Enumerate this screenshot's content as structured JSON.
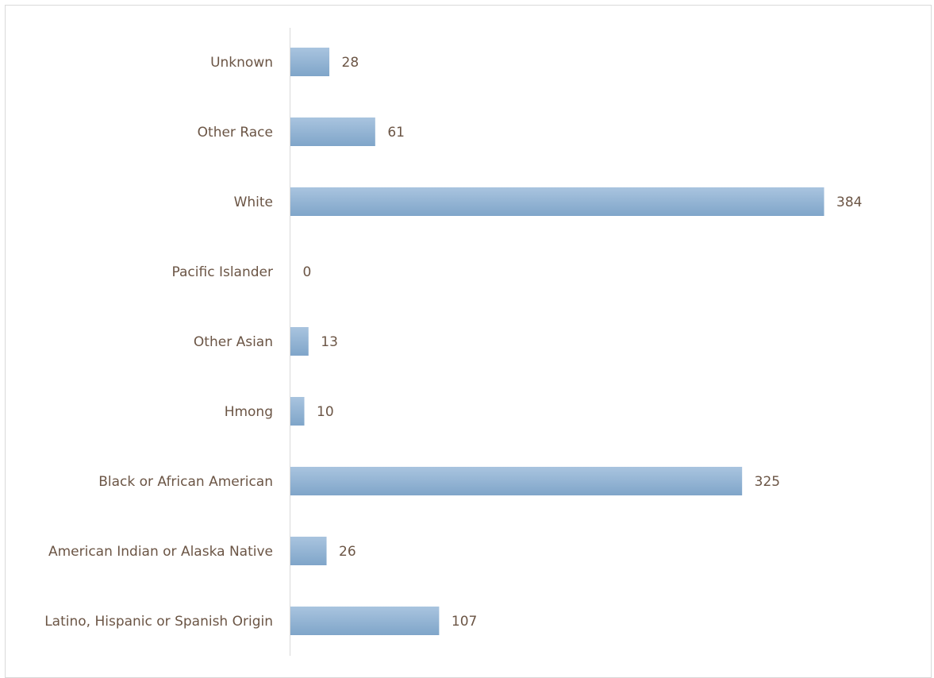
{
  "chart_data": {
    "type": "bar",
    "orientation": "horizontal",
    "categories": [
      "Unknown",
      "Other Race",
      "White",
      "Pacific Islander",
      "Other Asian",
      "Hmong",
      "Black or African American",
      "American Indian or Alaska Native",
      "Latino, Hispanic or Spanish Origin"
    ],
    "values": [
      28,
      61,
      384,
      0,
      13,
      10,
      325,
      26,
      107
    ],
    "title": "",
    "xlabel": "",
    "ylabel": "",
    "xlim": [
      0,
      384
    ],
    "grid": false,
    "legend": "none",
    "data_labels": true,
    "colors": {
      "bar_top": "#a9c4df",
      "bar_bottom": "#7fa5c9",
      "text": "#6b5545",
      "axis": "#d9d9d9"
    }
  }
}
